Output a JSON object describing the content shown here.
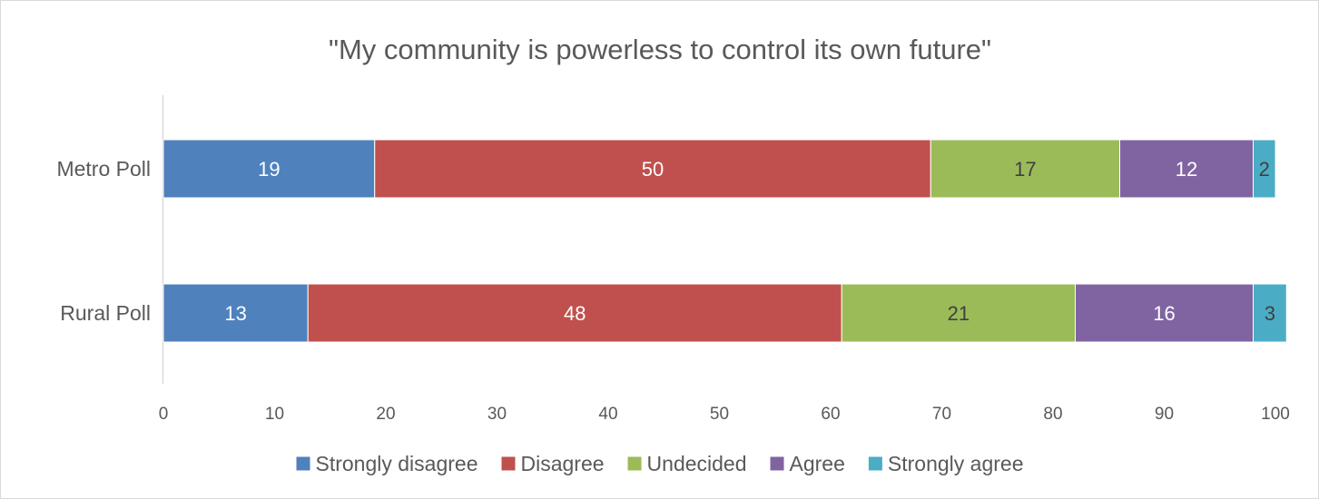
{
  "chart_data": {
    "type": "bar",
    "orientation": "horizontal",
    "stacked": true,
    "title": "\"My community is powerless to control its own future\"",
    "categories": [
      "Metro Poll",
      "Rural Poll"
    ],
    "series": [
      {
        "name": "Strongly disagree",
        "values": [
          19,
          13
        ],
        "color": "#4F81BD",
        "label_color": "#ffffff"
      },
      {
        "name": "Disagree",
        "values": [
          50,
          48
        ],
        "color": "#C0504D",
        "label_color": "#ffffff"
      },
      {
        "name": "Undecided",
        "values": [
          17,
          21
        ],
        "color": "#9BBB59",
        "label_color": "#404040"
      },
      {
        "name": "Agree",
        "values": [
          12,
          16
        ],
        "color": "#8064A2",
        "label_color": "#ffffff"
      },
      {
        "name": "Strongly agree",
        "values": [
          2,
          3
        ],
        "color": "#4BACC6",
        "label_color": "#404040"
      }
    ],
    "xlim": [
      0,
      100
    ],
    "xticks": [
      0,
      10,
      20,
      30,
      40,
      50,
      60,
      70,
      80,
      90,
      100
    ],
    "grid": false,
    "legend_position": "bottom",
    "xlabel": "",
    "ylabel": ""
  }
}
